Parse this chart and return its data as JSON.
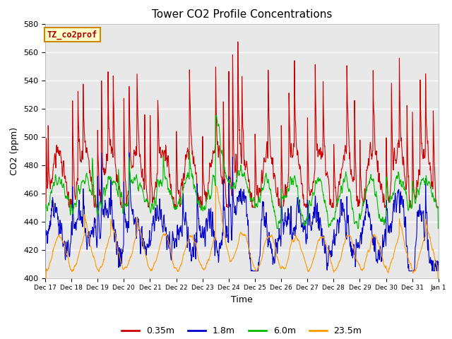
{
  "title": "Tower CO2 Profile Concentrations",
  "xlabel": "Time",
  "ylabel": "CO2 (ppm)",
  "ylim": [
    400,
    580
  ],
  "yticks": [
    400,
    420,
    440,
    460,
    480,
    500,
    520,
    540,
    560,
    580
  ],
  "label_text": "TZ_co2prof",
  "fig_bg": "#ffffff",
  "axes_bg": "#e8e8e8",
  "grid_color": "#ffffff",
  "line_colors": {
    "0.35m": "#cc0000",
    "1.8m": "#0000cc",
    "6.0m": "#00bb00",
    "23.5m": "#ff9900"
  },
  "series_labels": [
    "0.35m",
    "1.8m",
    "6.0m",
    "23.5m"
  ],
  "x_tick_labels": [
    "Dec 17",
    "Dec 18",
    "Dec 19",
    "Dec 20",
    "Dec 21",
    "Dec 22",
    "Dec 23",
    "Dec 24",
    "Dec 25",
    "Dec 26",
    "Dec 27",
    "Dec 28",
    "Dec 29",
    "Dec 30",
    "Dec 31",
    "Jan 1"
  ],
  "n_points": 1440,
  "seed": 17
}
